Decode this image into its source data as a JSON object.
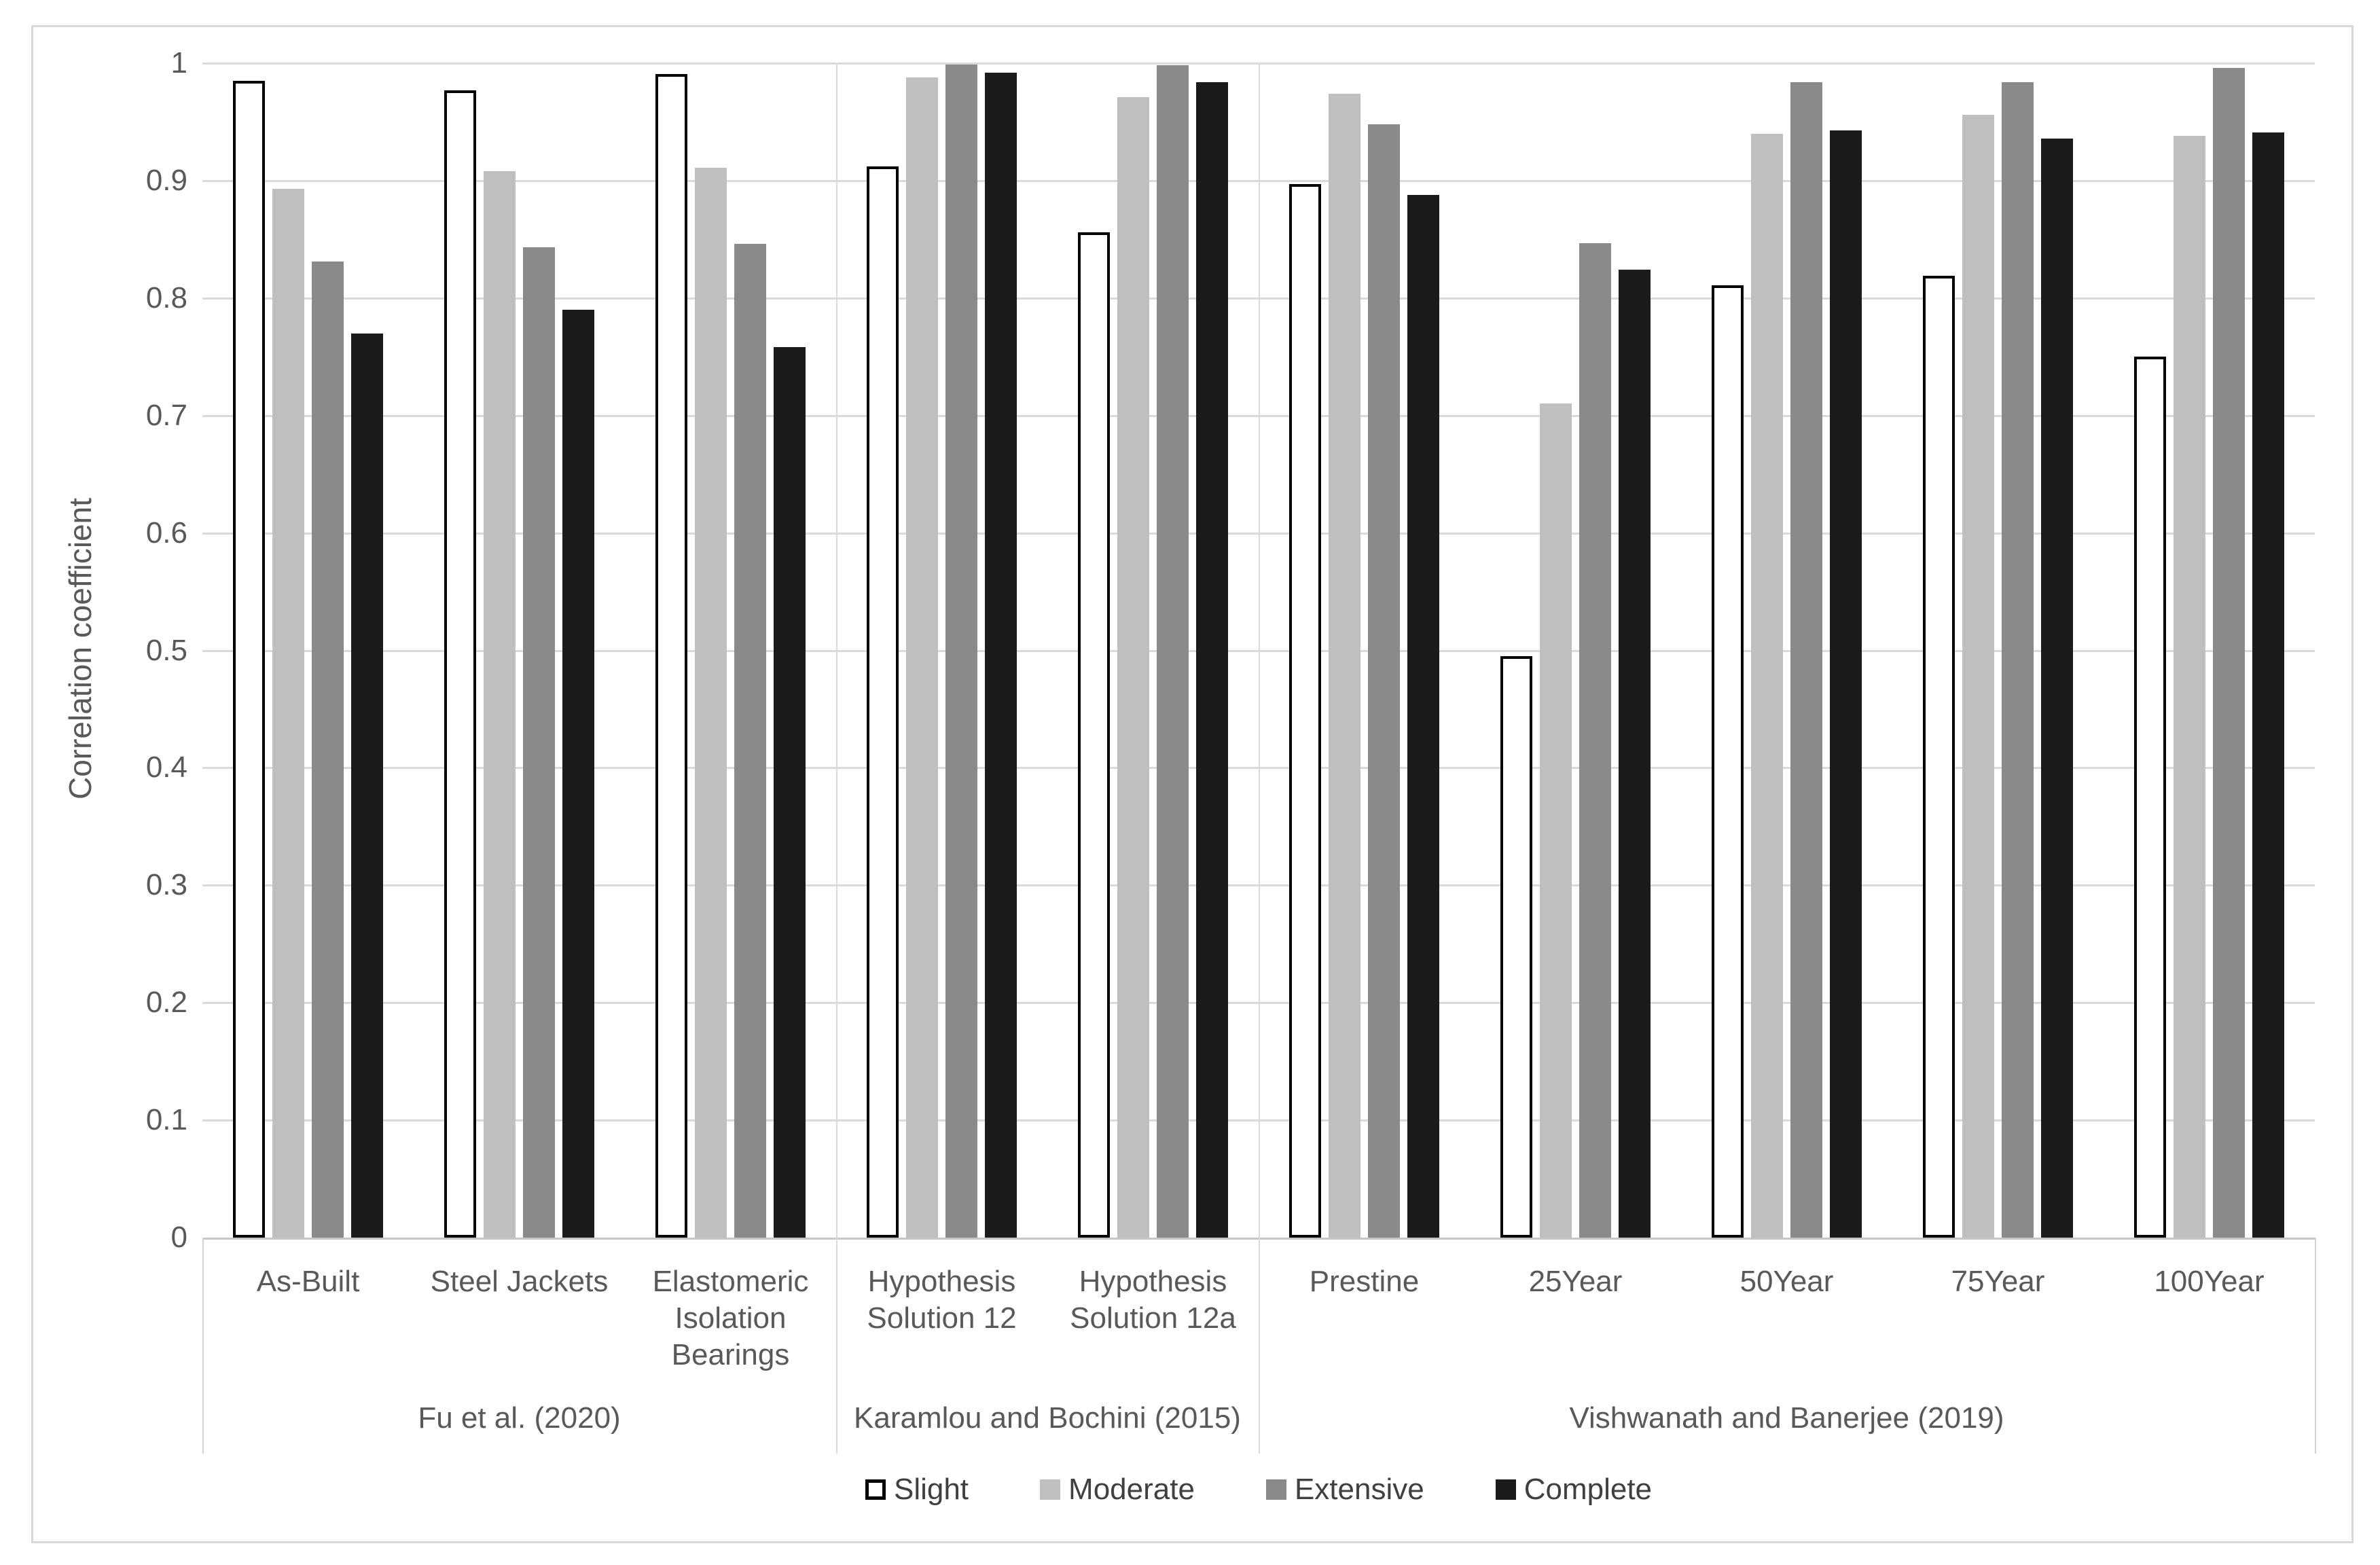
{
  "chart_data": {
    "type": "bar",
    "title": "",
    "xlabel": "",
    "ylabel": "Correlation coefficient",
    "ylim": [
      0,
      1
    ],
    "grid": true,
    "legend_position": "bottom",
    "ytick_labels": [
      "0",
      "0.1",
      "0.2",
      "0.3",
      "0.4",
      "0.5",
      "0.6",
      "0.7",
      "0.8",
      "0.9",
      "1"
    ],
    "groups": [
      {
        "label": "Fu et al. (2020)",
        "categories": [
          {
            "lines": [
              "As-Built"
            ]
          },
          {
            "lines": [
              "Steel Jackets"
            ]
          },
          {
            "lines": [
              "Elastomeric",
              "Isolation",
              "Bearings"
            ]
          }
        ]
      },
      {
        "label": "Karamlou and Bochini (2015)",
        "categories": [
          {
            "lines": [
              "Hypothesis",
              "Solution 12"
            ]
          },
          {
            "lines": [
              "Hypothesis",
              "Solution 12a"
            ]
          }
        ]
      },
      {
        "label": "Vishwanath and Banerjee  (2019)",
        "categories": [
          {
            "lines": [
              "Prestine"
            ]
          },
          {
            "lines": [
              "25Year"
            ]
          },
          {
            "lines": [
              "50Year"
            ]
          },
          {
            "lines": [
              "75Year"
            ]
          },
          {
            "lines": [
              "100Year"
            ]
          }
        ]
      }
    ],
    "series": [
      {
        "name": "Slight",
        "fill": "#FFFFFF",
        "border": "#000000",
        "values": [
          0.985,
          0.977,
          0.991,
          0.912,
          0.856,
          0.897,
          0.495,
          0.811,
          0.819,
          0.75
        ]
      },
      {
        "name": "Moderate",
        "fill": "#BFBFBF",
        "border": null,
        "values": [
          0.893,
          0.908,
          0.911,
          0.988,
          0.971,
          0.974,
          0.71,
          0.94,
          0.956,
          0.938
        ]
      },
      {
        "name": "Extensive",
        "fill": "#8A8A8A",
        "border": null,
        "values": [
          0.831,
          0.843,
          0.846,
          0.999,
          0.998,
          0.948,
          0.847,
          0.984,
          0.984,
          0.996
        ]
      },
      {
        "name": "Complete",
        "fill": "#1B1B1B",
        "border": null,
        "values": [
          0.77,
          0.79,
          0.758,
          0.992,
          0.984,
          0.888,
          0.824,
          0.943,
          0.936,
          0.941
        ]
      }
    ]
  },
  "colors": {
    "gridline": "#DADADA",
    "axis_line": "#C6C6C6",
    "separator": "#D2D2D2",
    "text": "#595959",
    "legend_text": "#404040",
    "frame_border": "#D8D8D8",
    "background": "#FFFFFF"
  }
}
